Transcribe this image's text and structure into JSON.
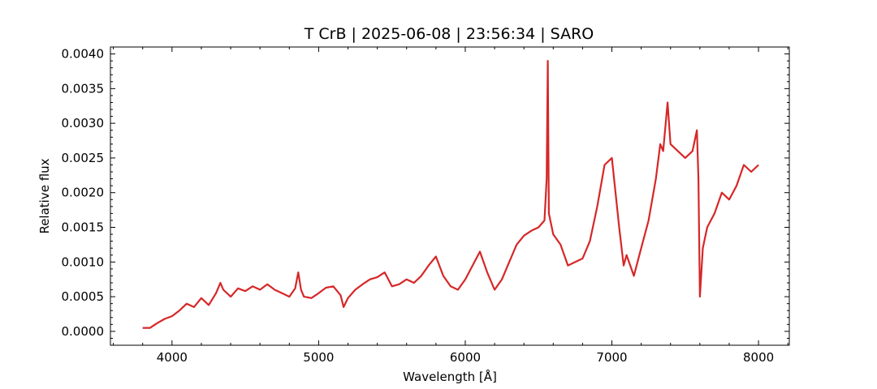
{
  "chart_data": {
    "type": "line",
    "title": "T CrB | 2025-06-08 | 23:56:34 | SARO",
    "xlabel": "Wavelength [Å]",
    "ylabel": "Relative flux",
    "xlim": [
      3580,
      8210
    ],
    "ylim": [
      -0.0002,
      0.0041
    ],
    "x_ticks": [
      4000,
      5000,
      6000,
      7000,
      8000
    ],
    "x_tick_labels": [
      "4000",
      "5000",
      "6000",
      "7000",
      "8000"
    ],
    "y_ticks": [
      0.0,
      0.0005,
      0.001,
      0.0015,
      0.002,
      0.0025,
      0.003,
      0.0035,
      0.004
    ],
    "y_tick_labels": [
      "0.0000",
      "0.0005",
      "0.0010",
      "0.0015",
      "0.0020",
      "0.0025",
      "0.0030",
      "0.0035",
      "0.0040"
    ],
    "grid": false,
    "colors": {
      "series": "#d62728",
      "axis": "#000000"
    },
    "series": [
      {
        "x": [
          3800,
          3850,
          3900,
          3950,
          4000,
          4050,
          4100,
          4150,
          4200,
          4250,
          4300,
          4330,
          4350,
          4400,
          4450,
          4500,
          4550,
          4600,
          4650,
          4700,
          4750,
          4800,
          4840,
          4861,
          4880,
          4900,
          4950,
          5000,
          5050,
          5100,
          5150,
          5170,
          5200,
          5250,
          5300,
          5350,
          5400,
          5450,
          5500,
          5550,
          5600,
          5650,
          5700,
          5750,
          5800,
          5850,
          5900,
          5950,
          6000,
          6050,
          6100,
          6150,
          6200,
          6250,
          6300,
          6350,
          6400,
          6450,
          6500,
          6540,
          6555,
          6563,
          6570,
          6600,
          6650,
          6700,
          6750,
          6800,
          6850,
          6900,
          6950,
          7000,
          7050,
          7080,
          7100,
          7150,
          7200,
          7250,
          7300,
          7330,
          7350,
          7380,
          7400,
          7450,
          7500,
          7550,
          7580,
          7590,
          7600,
          7620,
          7650,
          7700,
          7750,
          7800,
          7850,
          7900,
          7950,
          8000
        ],
        "y": [
          5e-05,
          5e-05,
          0.00012,
          0.00018,
          0.00022,
          0.0003,
          0.0004,
          0.00035,
          0.00048,
          0.00038,
          0.00055,
          0.0007,
          0.0006,
          0.0005,
          0.00062,
          0.00058,
          0.00065,
          0.0006,
          0.00068,
          0.0006,
          0.00055,
          0.0005,
          0.00062,
          0.00085,
          0.0006,
          0.0005,
          0.00048,
          0.00055,
          0.00063,
          0.00065,
          0.00052,
          0.00035,
          0.00048,
          0.0006,
          0.00068,
          0.00075,
          0.00078,
          0.00085,
          0.00065,
          0.00068,
          0.00075,
          0.0007,
          0.0008,
          0.00095,
          0.00108,
          0.0008,
          0.00065,
          0.0006,
          0.00075,
          0.00095,
          0.00115,
          0.00085,
          0.0006,
          0.00075,
          0.001,
          0.00125,
          0.00138,
          0.00145,
          0.0015,
          0.0016,
          0.0022,
          0.0039,
          0.0017,
          0.0014,
          0.00125,
          0.00095,
          0.001,
          0.00105,
          0.0013,
          0.0018,
          0.0024,
          0.0025,
          0.0015,
          0.00095,
          0.0011,
          0.0008,
          0.0012,
          0.0016,
          0.0022,
          0.0027,
          0.0026,
          0.0033,
          0.0027,
          0.0026,
          0.0025,
          0.0026,
          0.0029,
          0.0022,
          0.0005,
          0.0012,
          0.0015,
          0.0017,
          0.002,
          0.0019,
          0.0021,
          0.0024,
          0.0023,
          0.0024
        ]
      }
    ]
  }
}
